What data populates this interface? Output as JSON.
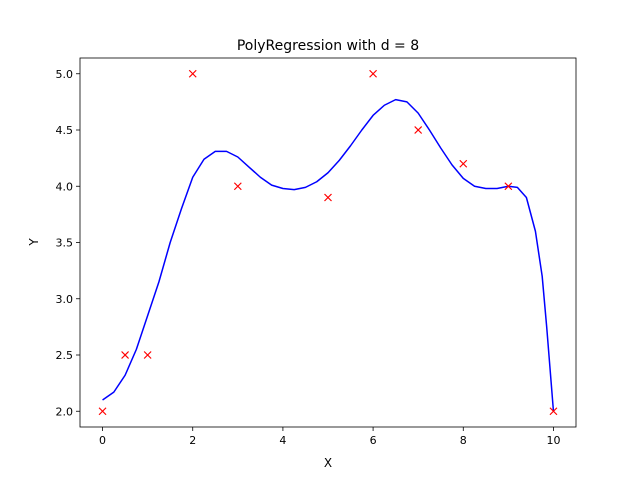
{
  "chart_data": {
    "type": "scatter",
    "title": "PolyRegression with d = 8",
    "xlabel": "X",
    "ylabel": "Y",
    "xlim": [
      -0.5,
      10.5
    ],
    "ylim": [
      1.86,
      5.14
    ],
    "grid": false,
    "x_ticks": [
      0,
      2,
      4,
      6,
      8,
      10
    ],
    "x_tick_labels": [
      "0",
      "2",
      "4",
      "6",
      "8",
      "10"
    ],
    "y_ticks": [
      2.0,
      2.5,
      3.0,
      3.5,
      4.0,
      4.5,
      5.0
    ],
    "y_tick_labels": [
      "2.0",
      "2.5",
      "3.0",
      "3.5",
      "4.0",
      "4.5",
      "5.0"
    ],
    "series": [
      {
        "kind": "scatter",
        "marker": "x",
        "color": "#ff0000",
        "points": [
          [
            0,
            2.0
          ],
          [
            0.5,
            2.5
          ],
          [
            1,
            2.5
          ],
          [
            2,
            5.0
          ],
          [
            3,
            4.0
          ],
          [
            5,
            3.9
          ],
          [
            6,
            5.0
          ],
          [
            7,
            4.5
          ],
          [
            8,
            4.2
          ],
          [
            9,
            4.0
          ],
          [
            10,
            2.0
          ]
        ]
      },
      {
        "kind": "line",
        "color": "#0000ff",
        "points": [
          [
            0,
            2.1
          ],
          [
            0.25,
            2.17
          ],
          [
            0.5,
            2.32
          ],
          [
            0.75,
            2.55
          ],
          [
            1,
            2.85
          ],
          [
            1.25,
            3.15
          ],
          [
            1.5,
            3.5
          ],
          [
            1.75,
            3.8
          ],
          [
            2,
            4.08
          ],
          [
            2.25,
            4.24
          ],
          [
            2.5,
            4.31
          ],
          [
            2.75,
            4.31
          ],
          [
            3,
            4.26
          ],
          [
            3.25,
            4.17
          ],
          [
            3.5,
            4.08
          ],
          [
            3.75,
            4.01
          ],
          [
            4,
            3.98
          ],
          [
            4.25,
            3.97
          ],
          [
            4.5,
            3.99
          ],
          [
            4.75,
            4.04
          ],
          [
            5,
            4.12
          ],
          [
            5.25,
            4.23
          ],
          [
            5.5,
            4.36
          ],
          [
            5.75,
            4.5
          ],
          [
            6,
            4.63
          ],
          [
            6.25,
            4.72
          ],
          [
            6.5,
            4.77
          ],
          [
            6.75,
            4.75
          ],
          [
            7,
            4.65
          ],
          [
            7.25,
            4.5
          ],
          [
            7.5,
            4.34
          ],
          [
            7.75,
            4.19
          ],
          [
            8,
            4.07
          ],
          [
            8.25,
            4.0
          ],
          [
            8.5,
            3.98
          ],
          [
            8.75,
            3.98
          ],
          [
            9,
            4.0
          ],
          [
            9.2,
            3.99
          ],
          [
            9.4,
            3.9
          ],
          [
            9.6,
            3.6
          ],
          [
            9.75,
            3.2
          ],
          [
            9.85,
            2.75
          ],
          [
            9.92,
            2.4
          ],
          [
            10,
            2.0
          ]
        ]
      }
    ]
  }
}
